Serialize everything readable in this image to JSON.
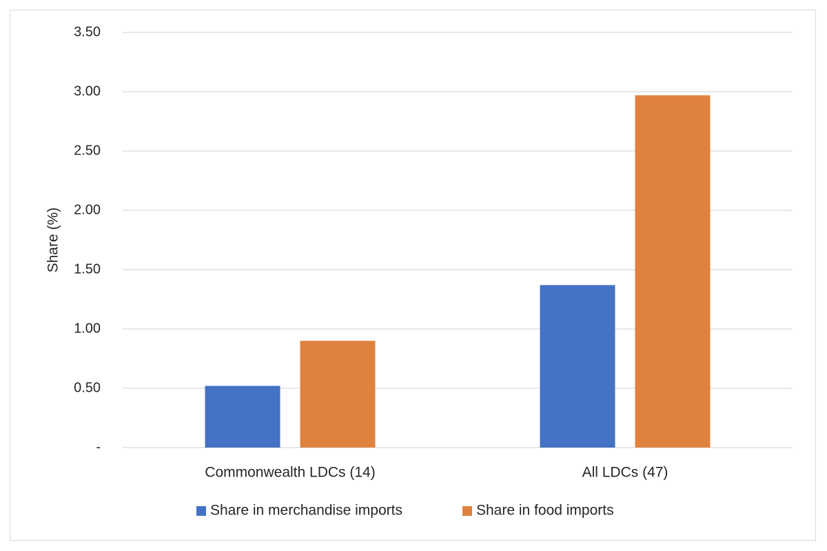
{
  "chart_data": {
    "type": "bar",
    "title": "",
    "xlabel": "",
    "ylabel": "Share (%)",
    "categories": [
      "Commonwealth LDCs (14)",
      "All LDCs (47)"
    ],
    "series": [
      {
        "name": "Share in merchandise imports",
        "color": "#4472c4",
        "values": [
          0.52,
          1.37
        ]
      },
      {
        "name": "Share in food imports",
        "color": "#e0823f",
        "values": [
          0.9,
          2.97
        ]
      }
    ],
    "ylim": [
      0,
      3.5
    ],
    "yticks": [
      0,
      0.5,
      1.0,
      1.5,
      2.0,
      2.5,
      3.0,
      3.5
    ],
    "ytick_labels": [
      "-",
      "0.50",
      "1.00",
      "1.50",
      "2.00",
      "2.50",
      "3.00",
      "3.50"
    ],
    "grid": true,
    "legend_position": "bottom"
  }
}
